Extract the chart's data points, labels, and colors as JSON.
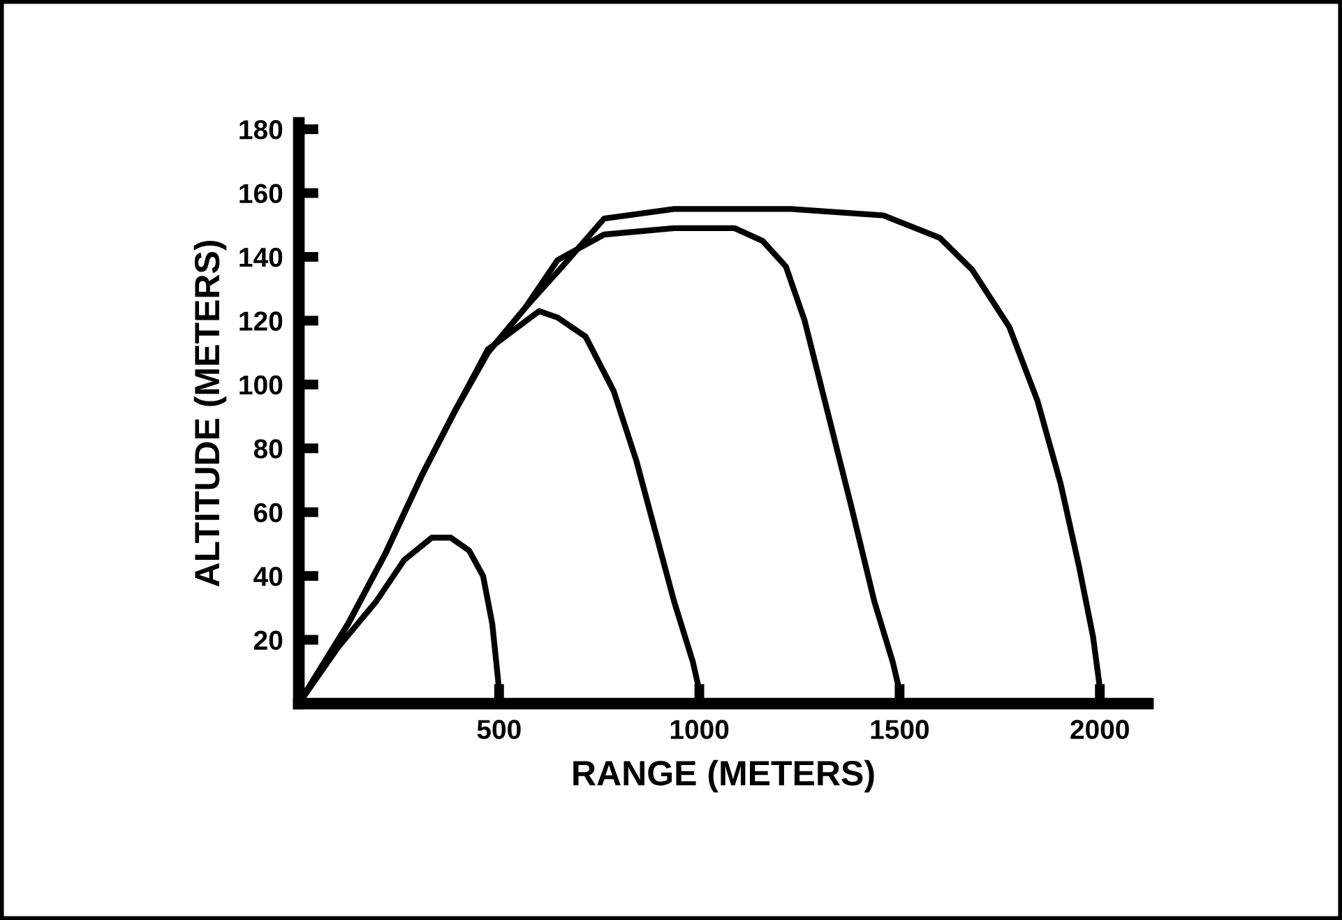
{
  "chart_data": {
    "type": "line",
    "xlabel": "RANGE (METERS)",
    "ylabel": "ALTITUDE (METERS)",
    "xlim": [
      0,
      2120
    ],
    "ylim": [
      0,
      182
    ],
    "xticks": [
      500,
      1000,
      1500,
      2000
    ],
    "yticks": [
      20,
      40,
      60,
      80,
      100,
      120,
      140,
      160,
      180
    ],
    "grid": false,
    "marker": "none",
    "line_style": "solid",
    "series": [
      {
        "color": "#000000",
        "x": [
          0,
          100,
          193,
          263,
          332,
          379,
          425,
          460,
          483,
          497,
          500,
          500
        ],
        "values": [
          0,
          18,
          32,
          45,
          52,
          52,
          48,
          40,
          25,
          8,
          4,
          0
        ]
      },
      {
        "color": "#000000",
        "x": [
          0,
          123,
          216,
          309,
          391,
          472,
          600,
          646,
          716,
          786,
          843,
          890,
          937,
          984,
          1000,
          1000
        ],
        "values": [
          0,
          25,
          47,
          72,
          92,
          111,
          123,
          121,
          115,
          98,
          76,
          54,
          32,
          13,
          4,
          0
        ]
      },
      {
        "color": "#000000",
        "x": [
          0,
          123,
          216,
          309,
          391,
          472,
          565,
          646,
          762,
          937,
          1088,
          1158,
          1216,
          1263,
          1321,
          1379,
          1437,
          1483,
          1500,
          1500
        ],
        "values": [
          0,
          25,
          47,
          72,
          92,
          110,
          124,
          139,
          147,
          149,
          149,
          145,
          137,
          120,
          91,
          62,
          32,
          13,
          4,
          0
        ]
      },
      {
        "color": "#000000",
        "x": [
          0,
          123,
          216,
          309,
          391,
          472,
          565,
          658,
          762,
          937,
          1228,
          1460,
          1600,
          1681,
          1774,
          1844,
          1902,
          1948,
          1983,
          2000,
          2000
        ],
        "values": [
          0,
          25,
          47,
          72,
          92,
          110,
          124,
          137,
          152,
          155,
          155,
          153,
          146,
          136,
          118,
          95,
          69,
          43,
          21,
          5,
          0
        ]
      }
    ]
  }
}
